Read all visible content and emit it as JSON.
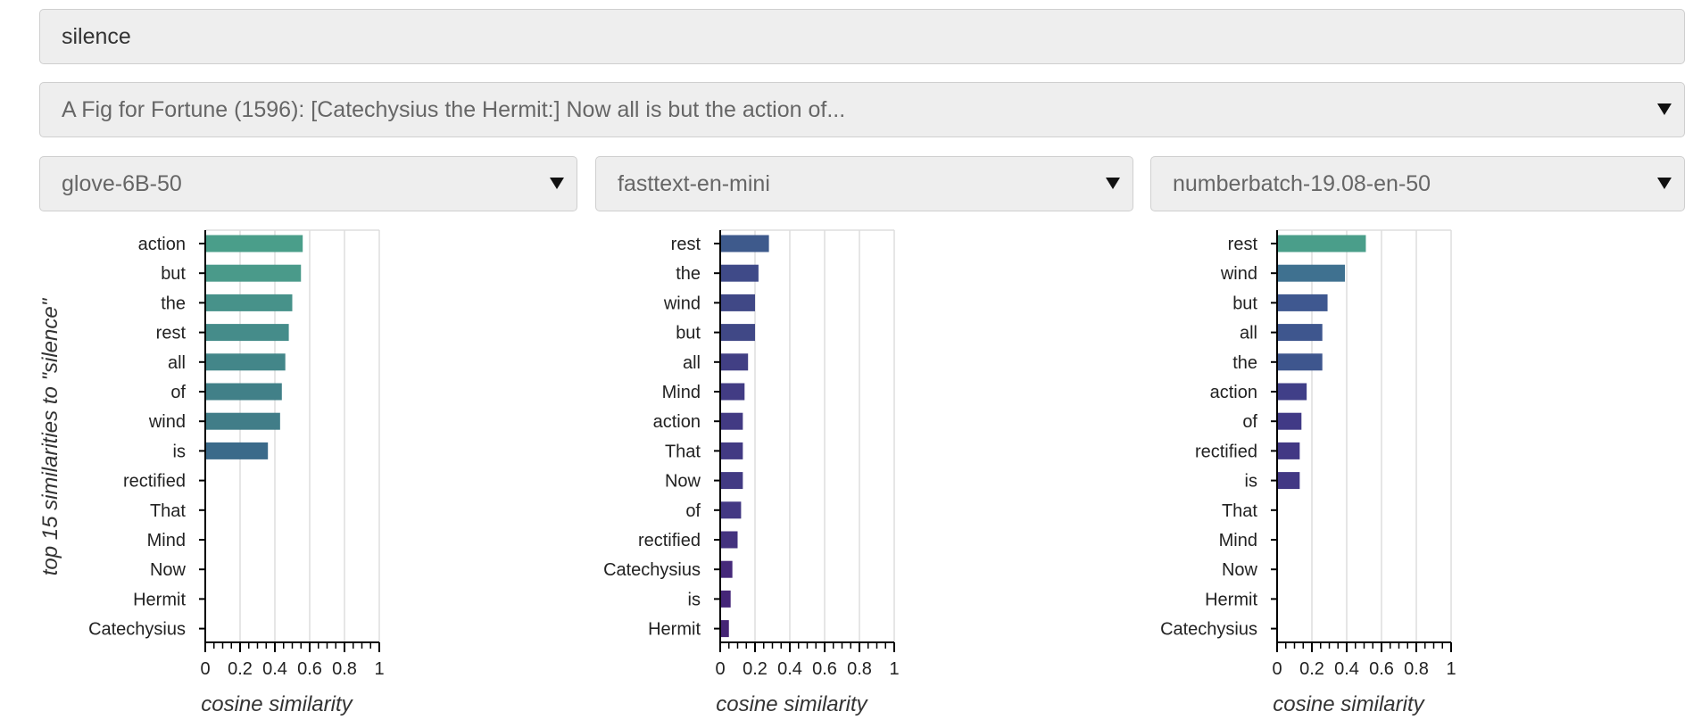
{
  "query": {
    "value": "silence"
  },
  "passage": {
    "selected": "A Fig for Fortune (1596): [Catechysius the Hermit:] Now all is but the action of..."
  },
  "models": [
    "glove-6B-50",
    "fasttext-en-mini",
    "numberbatch-19.08-en-50"
  ],
  "chart_data": [
    {
      "type": "bar",
      "orientation": "horizontal",
      "model": "glove-6B-50",
      "ylabel": "top 15 similarities to \"silence\"",
      "xlabel": "cosine similarity",
      "xlim": [
        0,
        1
      ],
      "x_ticks": [
        "0",
        "0.2",
        "0.4",
        "0.6",
        "0.8",
        "1"
      ],
      "grid": true,
      "categories": [
        "action",
        "but",
        "the",
        "rest",
        "all",
        "of",
        "wind",
        "is",
        "rectified",
        "That",
        "Mind",
        "Now",
        "Hermit",
        "Catechysius"
      ],
      "values": [
        0.56,
        0.55,
        0.5,
        0.48,
        0.46,
        0.44,
        0.43,
        0.36,
        0,
        0,
        0,
        0,
        0,
        0
      ],
      "colors": [
        "#4a9e8a",
        "#4a9a8a",
        "#47928a",
        "#458c8a",
        "#438689",
        "#418088",
        "#417d88",
        "#3b6a8a",
        "#3b6a8a",
        "#3b6a8a",
        "#3b6a8a",
        "#3b6a8a",
        "#3b6a8a",
        "#3b6a8a"
      ]
    },
    {
      "type": "bar",
      "orientation": "horizontal",
      "model": "fasttext-en-mini",
      "xlabel": "cosine similarity",
      "xlim": [
        0,
        1
      ],
      "x_ticks": [
        "0",
        "0.2",
        "0.4",
        "0.6",
        "0.8",
        "1"
      ],
      "grid": true,
      "categories": [
        "rest",
        "the",
        "wind",
        "but",
        "all",
        "Mind",
        "action",
        "That",
        "Now",
        "of",
        "rectified",
        "Catechysius",
        "is",
        "Hermit"
      ],
      "values": [
        0.28,
        0.22,
        0.2,
        0.2,
        0.16,
        0.14,
        0.13,
        0.13,
        0.13,
        0.12,
        0.1,
        0.07,
        0.06,
        0.05
      ],
      "colors": [
        "#3e5a8c",
        "#3f4a88",
        "#404886",
        "#404886",
        "#413f84",
        "#423c84",
        "#423a83",
        "#423a83",
        "#423a83",
        "#433883",
        "#44337f",
        "#45297a",
        "#452678",
        "#452575"
      ]
    },
    {
      "type": "bar",
      "orientation": "horizontal",
      "model": "numberbatch-19.08-en-50",
      "xlabel": "cosine similarity",
      "xlim": [
        0,
        1
      ],
      "x_ticks": [
        "0",
        "0.2",
        "0.4",
        "0.6",
        "0.8",
        "1"
      ],
      "grid": true,
      "categories": [
        "rest",
        "wind",
        "but",
        "all",
        "the",
        "action",
        "of",
        "rectified",
        "is",
        "That",
        "Mind",
        "Now",
        "Hermit",
        "Catechysius"
      ],
      "values": [
        0.51,
        0.39,
        0.29,
        0.26,
        0.26,
        0.17,
        0.14,
        0.13,
        0.13,
        0,
        0,
        0,
        0,
        0
      ],
      "colors": [
        "#4a9e8a",
        "#3f7190",
        "#3f5890",
        "#3e568e",
        "#3e568e",
        "#403f88",
        "#413a86",
        "#423884",
        "#423884",
        "#423884",
        "#423884",
        "#423884",
        "#423884",
        "#423884"
      ]
    }
  ]
}
